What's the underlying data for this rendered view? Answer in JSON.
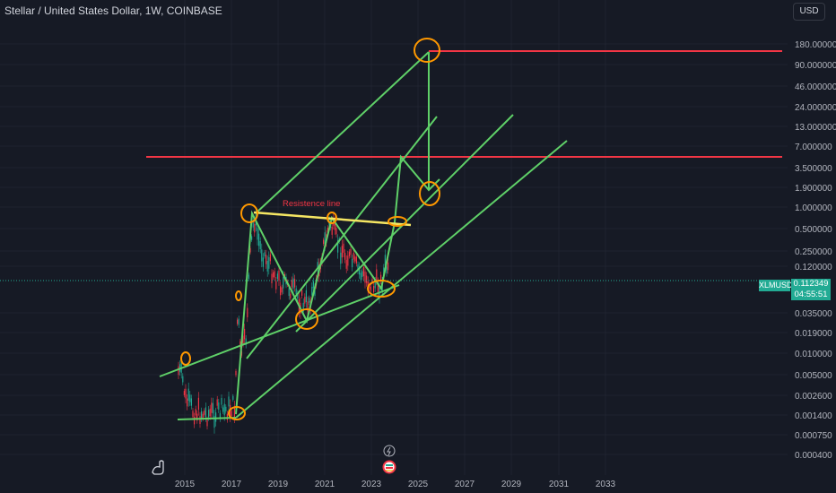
{
  "header": {
    "title": "Stellar / United States Dollar, 1W, COINBASE",
    "currency": "USD"
  },
  "y_axis": {
    "scale": "log",
    "labels": [
      "180.000000",
      "90.000000",
      "46.000000",
      "24.000000",
      "13.000000",
      "7.000000",
      "3.500000",
      "1.900000",
      "1.000000",
      "0.500000",
      "0.250000",
      "0.120000",
      "0.035000",
      "0.019000",
      "0.010000",
      "0.005000",
      "0.002600",
      "0.001400",
      "0.000750",
      "0.000400"
    ]
  },
  "x_axis": {
    "labels": [
      "2015",
      "2017",
      "2019",
      "2021",
      "2023",
      "2025",
      "2027",
      "2029",
      "2031",
      "2033"
    ]
  },
  "price": {
    "symbol": "XLMUSD",
    "last": "0.112349",
    "countdown": "04:55:51",
    "color": "#22ab94"
  },
  "annotations": {
    "resistance_label": "Resistence line"
  },
  "colors": {
    "background": "#161a25",
    "trend_lines": "#5fd068",
    "horizontal_levels": "#f23645",
    "resistance": "#f5e663",
    "circles": "#ff9800",
    "up": "#22ab94",
    "down": "#f23645"
  },
  "icons": [
    "tradingview-logo-icon",
    "lightning-icon",
    "flag-event-icon"
  ]
}
